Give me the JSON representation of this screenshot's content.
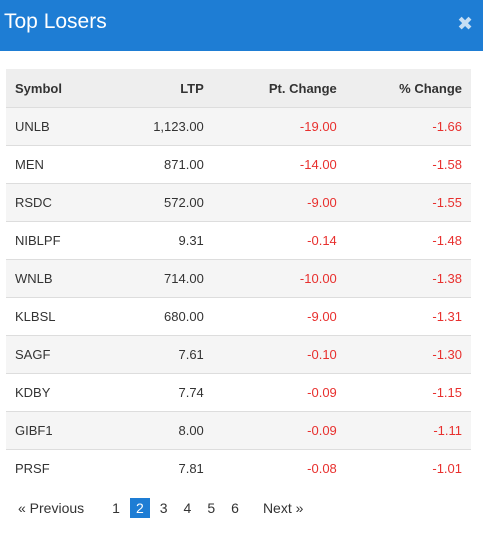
{
  "dialog": {
    "title": "Top Losers"
  },
  "colors": {
    "header_bg": "#1e7dd4",
    "negative": "#e8302e",
    "active_page": "#1e7dd4"
  },
  "close_icon": "close-icon",
  "table": {
    "columns": [
      "Symbol",
      "LTP",
      "Pt. Change",
      "% Change"
    ],
    "rows": [
      [
        "UNLB",
        "1,123.00",
        "-19.00",
        "-1.66"
      ],
      [
        "MEN",
        "871.00",
        "-14.00",
        "-1.58"
      ],
      [
        "RSDC",
        "572.00",
        "-9.00",
        "-1.55"
      ],
      [
        "NIBLPF",
        "9.31",
        "-0.14",
        "-1.48"
      ],
      [
        "WNLB",
        "714.00",
        "-10.00",
        "-1.38"
      ],
      [
        "KLBSL",
        "680.00",
        "-9.00",
        "-1.31"
      ],
      [
        "SAGF",
        "7.61",
        "-0.10",
        "-1.30"
      ],
      [
        "KDBY",
        "7.74",
        "-0.09",
        "-1.15"
      ],
      [
        "GIBF1",
        "8.00",
        "-0.09",
        "-1.11"
      ],
      [
        "PRSF",
        "7.81",
        "-0.08",
        "-1.01"
      ]
    ]
  },
  "pagination": {
    "prev_label": "« Previous",
    "next_label": "Next »",
    "pages": [
      "1",
      "2",
      "3",
      "4",
      "5",
      "6"
    ],
    "current": "2"
  }
}
